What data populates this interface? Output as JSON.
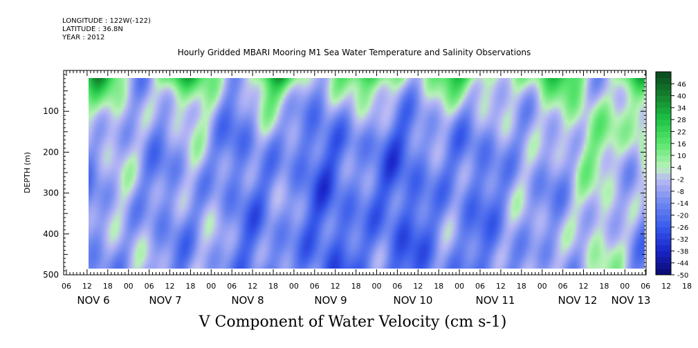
{
  "header": {
    "longitude": "LONGITUDE : 122W(-122)",
    "latitude": "LATITUDE : 36.8N",
    "year": "YEAR : 2012"
  },
  "chart_data": {
    "type": "heatmap",
    "title": "Hourly Gridded MBARI Mooring M1 Sea Water Temperature and Salinity Observations",
    "xlabel": "V Component of Water Velocity (cm s-1)",
    "ylabel": "DEPTH (m)",
    "ylim": [
      500,
      0
    ],
    "y_ticks": [
      100,
      200,
      300,
      400,
      500
    ],
    "hour_ticks": [
      "06",
      "12",
      "18",
      "00",
      "06",
      "12",
      "18",
      "00",
      "06",
      "12",
      "18",
      "00",
      "06",
      "12",
      "18",
      "00",
      "06",
      "12",
      "18",
      "00",
      "06",
      "12",
      "18",
      "00",
      "06",
      "12",
      "18",
      "00",
      "06",
      "12",
      "18",
      "00",
      "06"
    ],
    "date_labels": [
      "NOV 6",
      "NOV 7",
      "NOV 8",
      "NOV 9",
      "NOV 10",
      "NOV 11",
      "NOV 12",
      "NOV 13"
    ],
    "colorbar": {
      "labels": [
        "46",
        "40",
        "34",
        "28",
        "22",
        "16",
        "10",
        "4",
        "-2",
        "-8",
        "-14",
        "-20",
        "-26",
        "-32",
        "-38",
        "-44",
        "-50"
      ],
      "min": -50,
      "max": 52,
      "step": 3,
      "colors": {
        "dark_green": "#0b4a1e",
        "green": "#22c447",
        "light_green": "#b8f2b8",
        "light_blue": "#b8b8f4",
        "blue": "#3355e8",
        "dark_blue": "#0a0a6e"
      }
    },
    "grid": false
  }
}
